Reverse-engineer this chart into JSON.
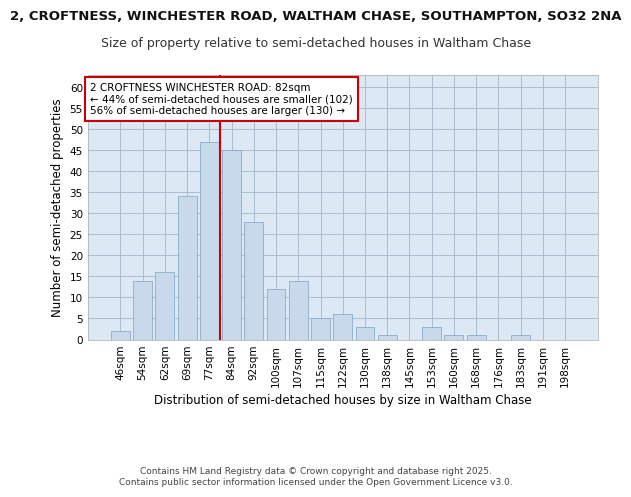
{
  "title_line1": "2, CROFTNESS, WINCHESTER ROAD, WALTHAM CHASE, SOUTHAMPTON, SO32 2NA",
  "title_line2": "Size of property relative to semi-detached houses in Waltham Chase",
  "xlabel": "Distribution of semi-detached houses by size in Waltham Chase",
  "ylabel": "Number of semi-detached properties",
  "categories": [
    "46sqm",
    "54sqm",
    "62sqm",
    "69sqm",
    "77sqm",
    "84sqm",
    "92sqm",
    "100sqm",
    "107sqm",
    "115sqm",
    "122sqm",
    "130sqm",
    "138sqm",
    "145sqm",
    "153sqm",
    "160sqm",
    "168sqm",
    "176sqm",
    "183sqm",
    "191sqm",
    "198sqm"
  ],
  "values": [
    2,
    14,
    16,
    34,
    47,
    45,
    28,
    12,
    14,
    5,
    6,
    3,
    1,
    0,
    3,
    1,
    1,
    0,
    1,
    0,
    0
  ],
  "bar_color": "#c9d9ec",
  "bar_edge_color": "#8aaecb",
  "vline_x": 4.5,
  "vline_color": "#cc0000",
  "annotation_text": "2 CROFTNESS WINCHESTER ROAD: 82sqm\n← 44% of semi-detached houses are smaller (102)\n56% of semi-detached houses are larger (130) →",
  "annotation_box_color": "#cc0000",
  "ylim": [
    0,
    63
  ],
  "yticks": [
    0,
    5,
    10,
    15,
    20,
    25,
    30,
    35,
    40,
    45,
    50,
    55,
    60
  ],
  "grid_color": "#aabdd0",
  "background_color": "#dce9f5",
  "footer_text": "Contains HM Land Registry data © Crown copyright and database right 2025.\nContains public sector information licensed under the Open Government Licence v3.0.",
  "title_fontsize": 9.5,
  "subtitle_fontsize": 9,
  "axis_label_fontsize": 8.5,
  "tick_fontsize": 7.5,
  "annotation_fontsize": 7.5,
  "footer_fontsize": 6.5
}
